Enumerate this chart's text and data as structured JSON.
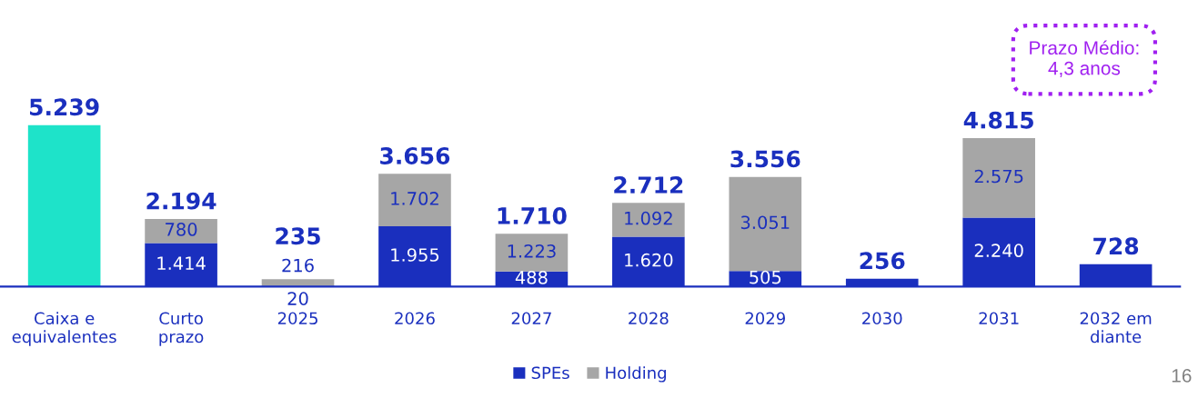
{
  "chart_data": {
    "type": "bar",
    "stacked": true,
    "categories": [
      "Caixa e\nequivalentes",
      "Curto\nprazo",
      "2025",
      "2026",
      "2027",
      "2028",
      "2029",
      "2030",
      "2031",
      "2032 em\ndiante"
    ],
    "series": [
      {
        "color": "#1ee3c9",
        "values": [
          5239,
          null,
          null,
          null,
          null,
          null,
          null,
          null,
          null,
          null
        ],
        "value_labels": [
          null,
          null,
          null,
          null,
          null,
          null,
          null,
          null,
          null,
          null
        ]
      },
      {
        "name": "SPEs",
        "color": "#1a2fbe",
        "values": [
          null,
          1414,
          20,
          1955,
          488,
          1620,
          505,
          256,
          2240,
          728
        ],
        "value_labels": [
          null,
          "1.414",
          "20",
          "1.955",
          "488",
          "1.620",
          "505",
          null,
          "2.240",
          null
        ]
      },
      {
        "name": "Holding",
        "color": "#a6a6a6",
        "values": [
          null,
          780,
          216,
          1702,
          1223,
          1092,
          3051,
          null,
          2575,
          null
        ],
        "value_labels": [
          null,
          "780",
          "216",
          "1.702",
          "1.223",
          "1.092",
          "3.051",
          null,
          "2.575",
          null
        ]
      }
    ],
    "totals": [
      "5.239",
      "2.194",
      "235",
      "3.656",
      "1.710",
      "2.712",
      "3.556",
      "256",
      "4.815",
      "728"
    ],
    "annotations": [
      "Prazo Médio:\n4,3 anos",
      "16"
    ],
    "legend": "bottom",
    "tick_labels": "x"
  }
}
